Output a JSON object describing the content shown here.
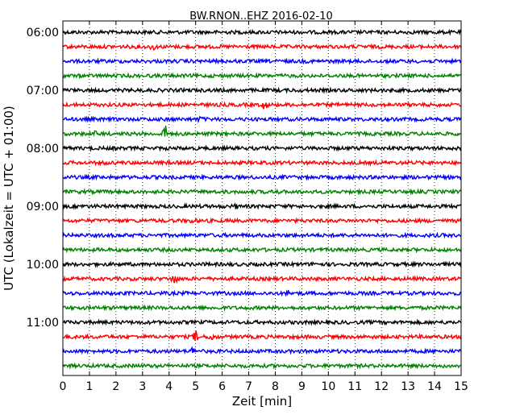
{
  "chart_data": {
    "type": "line",
    "title": "BW.RNON..EHZ 2016-02-10",
    "xlabel": "Zeit  [min]",
    "ylabel": "UTC (Lokalzeit = UTC + 01:00)",
    "xlim": [
      0,
      15
    ],
    "xticks": [
      0,
      1,
      2,
      3,
      4,
      5,
      6,
      7,
      8,
      9,
      10,
      11,
      12,
      13,
      14,
      15
    ],
    "yticks": [
      "06:00",
      "07:00",
      "08:00",
      "09:00",
      "10:00",
      "11:00"
    ],
    "grid": "vertical dotted",
    "trace_interval_minutes": 15,
    "trace_colors": [
      "#000000",
      "#ff0000",
      "#0000ff",
      "#008000"
    ],
    "traces": [
      {
        "start": "06:00",
        "color": "#000000",
        "events": []
      },
      {
        "start": "06:15",
        "color": "#ff0000",
        "events": [
          {
            "t": 3.4,
            "amp": 0.5
          }
        ]
      },
      {
        "start": "06:30",
        "color": "#0000ff",
        "events": []
      },
      {
        "start": "06:45",
        "color": "#008000",
        "events": []
      },
      {
        "start": "07:00",
        "color": "#000000",
        "events": []
      },
      {
        "start": "07:15",
        "color": "#ff0000",
        "events": [
          {
            "t": 7.6,
            "amp": 0.8
          }
        ]
      },
      {
        "start": "07:30",
        "color": "#0000ff",
        "events": [
          {
            "t": 5.2,
            "amp": 0.4
          }
        ]
      },
      {
        "start": "07:45",
        "color": "#008000",
        "events": [
          {
            "t": 3.85,
            "amp": 1.6
          },
          {
            "t": 1.2,
            "amp": 0.3
          }
        ]
      },
      {
        "start": "08:00",
        "color": "#000000",
        "events": []
      },
      {
        "start": "08:15",
        "color": "#ff0000",
        "events": [
          {
            "t": 1.5,
            "amp": 0.3
          }
        ]
      },
      {
        "start": "08:30",
        "color": "#0000ff",
        "events": []
      },
      {
        "start": "08:45",
        "color": "#008000",
        "events": [
          {
            "t": 8.0,
            "amp": 0.4
          }
        ]
      },
      {
        "start": "09:00",
        "color": "#000000",
        "events": [
          {
            "t": 6.5,
            "amp": 0.3
          }
        ]
      },
      {
        "start": "09:15",
        "color": "#ff0000",
        "events": [
          {
            "t": 4.9,
            "amp": 0.3
          }
        ]
      },
      {
        "start": "09:30",
        "color": "#0000ff",
        "events": []
      },
      {
        "start": "09:45",
        "color": "#008000",
        "events": []
      },
      {
        "start": "10:00",
        "color": "#000000",
        "events": [
          {
            "t": 9.5,
            "amp": 0.3
          }
        ]
      },
      {
        "start": "10:15",
        "color": "#ff0000",
        "events": [
          {
            "t": 4.2,
            "amp": 1.2
          }
        ]
      },
      {
        "start": "10:30",
        "color": "#0000ff",
        "events": [
          {
            "t": 8.5,
            "amp": 0.4
          }
        ]
      },
      {
        "start": "10:45",
        "color": "#008000",
        "events": []
      },
      {
        "start": "11:00",
        "color": "#000000",
        "events": []
      },
      {
        "start": "11:15",
        "color": "#ff0000",
        "events": [
          {
            "t": 5.0,
            "amp": 1.0
          },
          {
            "t": 5.6,
            "amp": 0.6
          }
        ]
      },
      {
        "start": "11:30",
        "color": "#0000ff",
        "events": [
          {
            "t": 4.9,
            "amp": 0.6
          }
        ]
      },
      {
        "start": "11:45",
        "color": "#008000",
        "events": []
      }
    ]
  }
}
